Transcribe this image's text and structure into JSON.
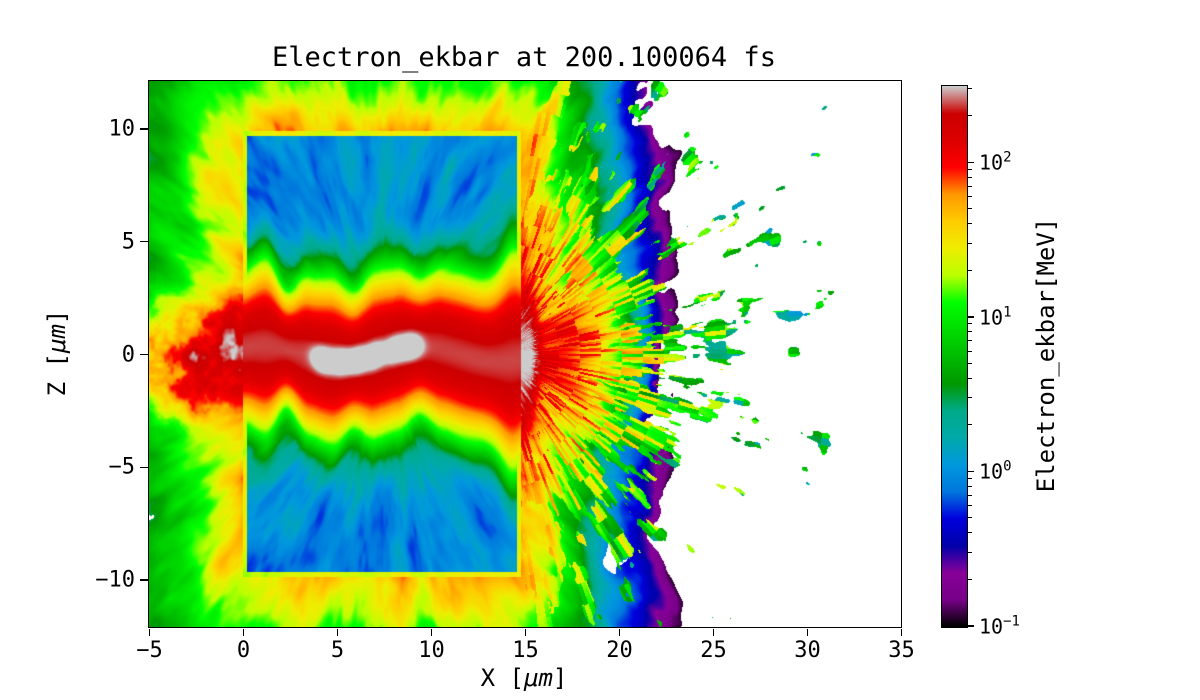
{
  "figure": {
    "background": "#ffffff"
  },
  "chart_data": {
    "type": "heatmap",
    "title": "Electron_ekbar at 200.100064 fs",
    "xlabel": "X [μm]",
    "ylabel": "Z [μm]",
    "xlim": [
      -5,
      35
    ],
    "ylim": [
      -12.1,
      12.1
    ],
    "xticks": [
      -5,
      0,
      5,
      10,
      15,
      20,
      25,
      30,
      35
    ],
    "yticks": [
      -10,
      -5,
      0,
      5,
      10
    ],
    "grid": false,
    "colorbar": {
      "label": "Electron_ekbar[MeV]",
      "scale": "log",
      "colormap": "nipy_spectral",
      "vmin": 0.1,
      "vmax": 316,
      "log10_range": [
        -1,
        2.5
      ],
      "major_ticks": [
        {
          "value": 0.1,
          "exponent": -1
        },
        {
          "value": 1,
          "exponent": 0
        },
        {
          "value": 10,
          "exponent": 1
        },
        {
          "value": 100,
          "exponent": 2
        }
      ]
    },
    "features": {
      "target_box": {
        "x": [
          0,
          14.8
        ],
        "z": [
          -9.9,
          9.9
        ],
        "typical_MeV": 0.7,
        "description": "cold target slab rendered deep blue with faint lighter radial streaks"
      },
      "hot_channel": {
        "x": [
          -4,
          15.3
        ],
        "z_center": 0,
        "z_halfwidth": 2,
        "peak_MeV": 300,
        "description": "red laser-drilled channel along z=0 with >300 MeV grey cores near x=4-9 and a round red blob at x=14-15.5"
      },
      "halo": {
        "edge_MeV": 50,
        "far_MeV": 3,
        "description": "yellow-orange sheath hugging the target, fading to green streaks toward the plot edges"
      },
      "exit_blob": {
        "x": [
          15.5,
          20
        ],
        "MeV": 55,
        "description": "orange-yellow cloud just right of the target exit"
      },
      "plume": {
        "x": [
          15,
          35
        ],
        "MeV_range": [
          0.15,
          20
        ],
        "description": "sparse dashed ejecta fanning right, green to cyan to blue to purple with distance, white background between streaks"
      }
    }
  }
}
